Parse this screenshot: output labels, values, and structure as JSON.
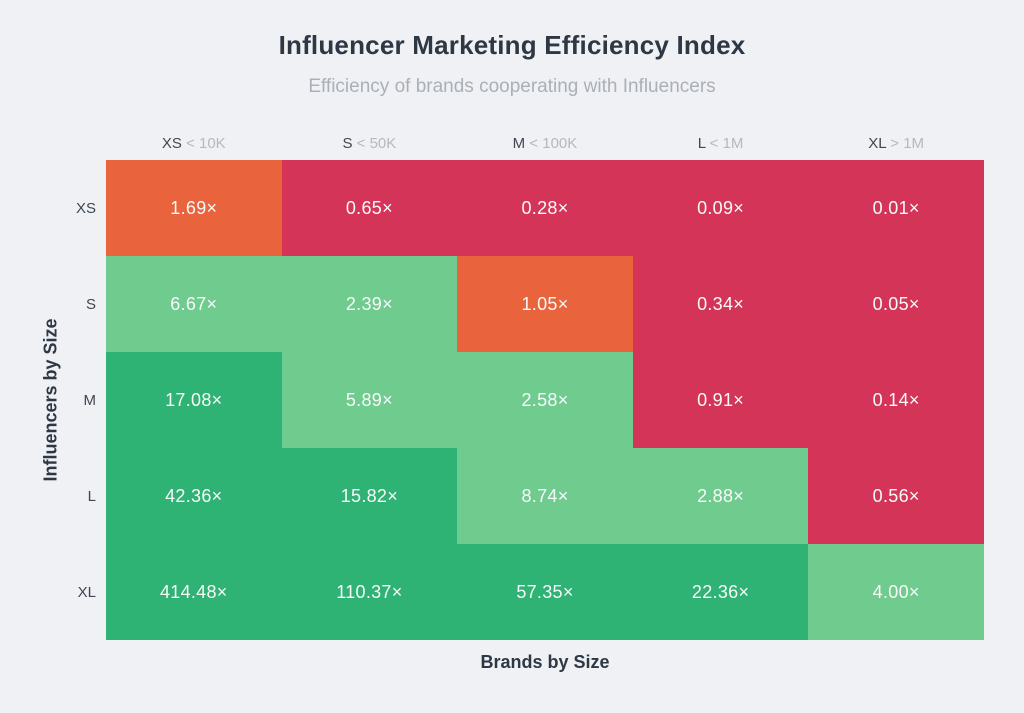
{
  "page": {
    "background": "#eff1f4"
  },
  "header": {
    "title": "Influencer Marketing Efficiency Index",
    "subtitle": "Efficiency of brands cooperating with Influencers"
  },
  "chart_data": {
    "type": "heatmap",
    "title": "Influencer Marketing Efficiency Index",
    "subtitle": "Efficiency of brands cooperating with Influencers",
    "xlabel": "Brands by Size",
    "ylabel": "Influencers by Size",
    "columns": [
      {
        "size": "XS",
        "threshold": "< 10K"
      },
      {
        "size": "S",
        "threshold": "< 50K"
      },
      {
        "size": "M",
        "threshold": "< 100K"
      },
      {
        "size": "L",
        "threshold": "< 1M"
      },
      {
        "size": "XL",
        "threshold": "> 1M"
      }
    ],
    "rows": [
      "XS",
      "S",
      "M",
      "L",
      "XL"
    ],
    "values": [
      [
        1.69,
        0.65,
        0.28,
        0.09,
        0.01
      ],
      [
        6.67,
        2.39,
        1.05,
        0.34,
        0.05
      ],
      [
        17.08,
        5.89,
        2.58,
        0.91,
        0.14
      ],
      [
        42.36,
        15.82,
        8.74,
        2.88,
        0.56
      ],
      [
        414.48,
        110.37,
        57.35,
        22.36,
        4.0
      ]
    ],
    "cell_labels": [
      [
        "1.69×",
        "0.65×",
        "0.28×",
        "0.09×",
        "0.01×"
      ],
      [
        "6.67×",
        "2.39×",
        "1.05×",
        "0.34×",
        "0.05×"
      ],
      [
        "17.08×",
        "5.89×",
        "2.58×",
        "0.91×",
        "0.14×"
      ],
      [
        "42.36×",
        "15.82×",
        "8.74×",
        "2.88×",
        "0.56×"
      ],
      [
        "414.48×",
        "110.37×",
        "57.35×",
        "22.36×",
        "4.00×"
      ]
    ],
    "cell_colors": [
      [
        "orange",
        "red",
        "red",
        "red",
        "red"
      ],
      [
        "lightGreen",
        "lightGreen",
        "orange",
        "red",
        "red"
      ],
      [
        "green",
        "lightGreen",
        "lightGreen",
        "red",
        "red"
      ],
      [
        "green",
        "green",
        "lightGreen",
        "lightGreen",
        "red"
      ],
      [
        "green",
        "green",
        "green",
        "green",
        "lightGreen"
      ]
    ],
    "palette": {
      "red": "#d53459",
      "orange": "#e9633d",
      "lightGreen": "#6fcc8e",
      "green": "#2eb374"
    },
    "value_text_color": "#f7f9f9",
    "legend": "none",
    "grid": "off"
  }
}
